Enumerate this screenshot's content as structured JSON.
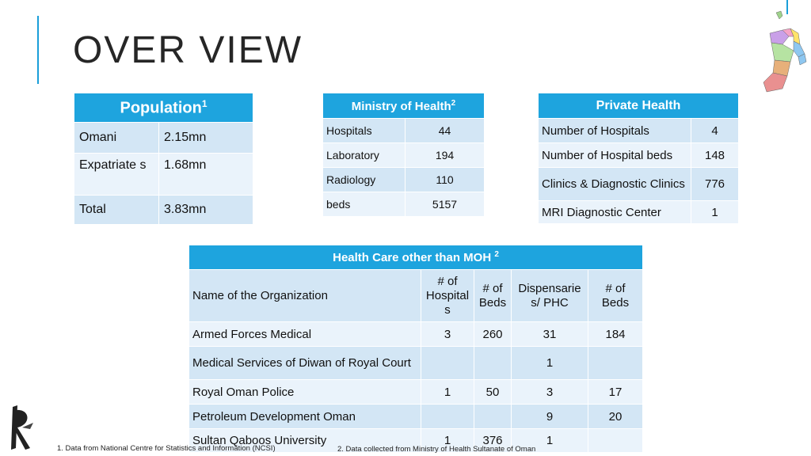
{
  "title": "OVER VIEW",
  "population": {
    "header": "Population",
    "header_sup": "1",
    "rows": [
      {
        "label": "Omani",
        "value": "2.15mn"
      },
      {
        "label": "Expatriate s",
        "value": "1.68mn"
      },
      {
        "label": "Total",
        "value": "3.83mn"
      }
    ]
  },
  "moh": {
    "header": "Ministry of Health",
    "header_sup": "2",
    "rows": [
      {
        "label": "Hospitals",
        "value": "44"
      },
      {
        "label": "Laboratory",
        "value": "194"
      },
      {
        "label": "Radiology",
        "value": "110"
      },
      {
        "label": "beds",
        "value": "5157"
      }
    ]
  },
  "private": {
    "header": "Private Health",
    "rows": [
      {
        "label": "Number of Hospitals",
        "value": "4"
      },
      {
        "label": "Number of Hospital beds",
        "value": "148"
      },
      {
        "label": "Clinics & Diagnostic Clinics",
        "value": "776"
      },
      {
        "label": "MRI Diagnostic Center",
        "value": "1"
      }
    ]
  },
  "health_care": {
    "header": "Health Care other than MOH",
    "header_sup": "2",
    "columns": [
      "Name of the Organization",
      "# of Hospital s",
      "# of Beds",
      "Dispensarie s/ PHC",
      "# of Beds"
    ],
    "rows": [
      [
        "Armed Forces Medical",
        "3",
        "260",
        "31",
        "184"
      ],
      [
        "Medical Services of Diwan of Royal Court",
        "",
        "",
        "1",
        ""
      ],
      [
        "Royal Oman Police",
        "1",
        "50",
        "3",
        "17"
      ],
      [
        "Petroleum Development Oman",
        "",
        "",
        "9",
        "20"
      ],
      [
        "Sultan Qaboos University",
        "1",
        "376",
        "1",
        ""
      ]
    ]
  },
  "footnotes": {
    "f1": "1. Data from National Centre for Statistics and Information (NCSI)",
    "f2": "2. Data collected from Ministry of Health Sultanate of Oman"
  },
  "icons": {
    "logo": "rk-logo-icon",
    "map": "oman-map-icon"
  },
  "colors": {
    "accent": "#1ea4de",
    "row_dark": "#d3e6f5",
    "row_light": "#eaf3fb"
  }
}
